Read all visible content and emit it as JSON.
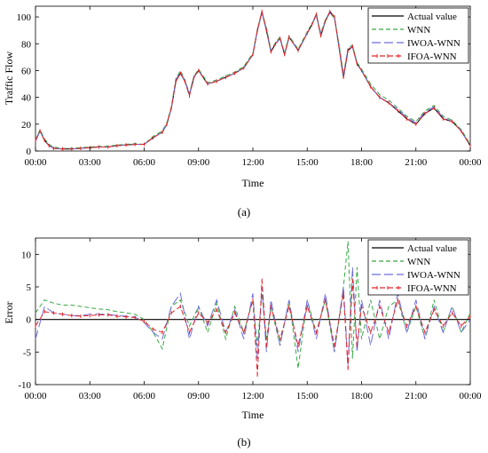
{
  "chart_data": [
    {
      "type": "line",
      "panel_label": "(a)",
      "xlabel": "Time",
      "ylabel": "Traffic Flow",
      "x_ticks": [
        "00:00",
        "03:00",
        "06:00",
        "09:00",
        "12:00",
        "15:00",
        "18:00",
        "21:00",
        "00:00"
      ],
      "xlim_hours": [
        0,
        24
      ],
      "ylim": [
        0,
        108
      ],
      "y_ticks": [
        0,
        20,
        40,
        60,
        80,
        100
      ],
      "grid": false,
      "legend_position": "top-right",
      "legend": [
        "Actual value",
        "WNN",
        "IWOA-WNN",
        "IFOA-WNN"
      ],
      "x_hours": [
        0,
        0.25,
        0.5,
        0.75,
        1,
        1.5,
        2,
        2.5,
        3,
        3.5,
        4,
        4.5,
        5,
        5.5,
        6,
        6.5,
        7,
        7.25,
        7.5,
        7.75,
        8,
        8.25,
        8.5,
        8.75,
        9,
        9.5,
        10,
        10.5,
        11,
        11.5,
        12,
        12.25,
        12.5,
        12.75,
        13,
        13.25,
        13.5,
        13.75,
        14,
        14.5,
        15,
        15.25,
        15.5,
        15.75,
        16,
        16.25,
        16.5,
        16.75,
        17,
        17.25,
        17.5,
        17.75,
        18,
        18.5,
        19,
        19.5,
        20,
        20.5,
        21,
        21.5,
        22,
        22.5,
        23,
        23.5,
        24
      ],
      "series": [
        {
          "name": "Actual value",
          "color": "#000000",
          "values": [
            8,
            15,
            8,
            4,
            2,
            1.5,
            1.5,
            2,
            2.5,
            3,
            3,
            4,
            4.5,
            5,
            5,
            10,
            14,
            20,
            32,
            52,
            58,
            52,
            42,
            55,
            60,
            50,
            52,
            55,
            58,
            62,
            72,
            90,
            104,
            90,
            74,
            80,
            84,
            72,
            85,
            75,
            88,
            94,
            102,
            86,
            97,
            104,
            100,
            78,
            55,
            75,
            78,
            65,
            60,
            48,
            40,
            36,
            30,
            24,
            20,
            28,
            32,
            24,
            22,
            15,
            4
          ]
        },
        {
          "name": "WNN",
          "color": "#39a845",
          "values": [
            8,
            16,
            9,
            5,
            3,
            2,
            2,
            2.5,
            3,
            3.5,
            3.5,
            4.5,
            5,
            5.5,
            5,
            11,
            15,
            21,
            33,
            54,
            60,
            53,
            43,
            56,
            61,
            51,
            53,
            56,
            59,
            63,
            73,
            91,
            103,
            92,
            75,
            81,
            85,
            73,
            86,
            76,
            89,
            95,
            101,
            88,
            98,
            103,
            99,
            80,
            57,
            77,
            79,
            66,
            61,
            50,
            42,
            38,
            32,
            26,
            22,
            30,
            34,
            26,
            23,
            16,
            5
          ]
        },
        {
          "name": "IWOA-WNN",
          "color": "#6e6ee0",
          "values": [
            7,
            15,
            8,
            4,
            2,
            1.5,
            1.5,
            2,
            2.5,
            3,
            3,
            4,
            4.5,
            5,
            5,
            10,
            14,
            20,
            32,
            53,
            59,
            52,
            42,
            55,
            60,
            50,
            52,
            55,
            58,
            62,
            72,
            90,
            103,
            91,
            74,
            80,
            84,
            72,
            85,
            75,
            88,
            94,
            101,
            87,
            97,
            103,
            100,
            79,
            56,
            76,
            78,
            65,
            60,
            48,
            40,
            36,
            31,
            25,
            21,
            29,
            33,
            25,
            22,
            15,
            4
          ]
        },
        {
          "name": "IFOA-WNN",
          "color": "#e0252a",
          "values": [
            8,
            15,
            8,
            4,
            2,
            1.5,
            1.5,
            2,
            2.5,
            3,
            3,
            4,
            4.5,
            5,
            5,
            10,
            14,
            20,
            32,
            52,
            58,
            52,
            41,
            55,
            60,
            50,
            52,
            55,
            58,
            62,
            72,
            90,
            104,
            90,
            74,
            80,
            84,
            72,
            85,
            75,
            88,
            94,
            102,
            86,
            97,
            104,
            100,
            78,
            55,
            75,
            78,
            65,
            60,
            48,
            40,
            36,
            30,
            24,
            20,
            28,
            32,
            24,
            22,
            15,
            4
          ]
        }
      ]
    },
    {
      "type": "line",
      "panel_label": "(b)",
      "xlabel": "Time",
      "ylabel": "Error",
      "x_ticks": [
        "00:00",
        "03:00",
        "06:00",
        "09:00",
        "12:00",
        "15:00",
        "18:00",
        "21:00",
        "00:00"
      ],
      "xlim_hours": [
        0,
        24
      ],
      "ylim": [
        -10,
        12.5
      ],
      "y_ticks": [
        -10,
        -5,
        0,
        5,
        10
      ],
      "grid": false,
      "legend_position": "top-right",
      "legend": [
        "Actual value",
        "WNN",
        "IWOA-WNN",
        "IFOA-WNN"
      ],
      "x_hours": [
        0,
        0.5,
        1,
        1.5,
        2,
        2.5,
        3,
        3.5,
        4,
        4.5,
        5,
        5.5,
        6,
        6.5,
        7,
        7.5,
        8,
        8.5,
        9,
        9.5,
        10,
        10.5,
        11,
        11.5,
        12,
        12.25,
        12.5,
        12.75,
        13,
        13.5,
        14,
        14.5,
        15,
        15.5,
        16,
        16.5,
        17,
        17.25,
        17.5,
        17.75,
        18,
        18.5,
        19,
        19.5,
        20,
        20.5,
        21,
        21.5,
        22,
        22.5,
        23,
        23.5,
        24
      ],
      "series": [
        {
          "name": "Actual value",
          "color": "#000000",
          "values": [
            0,
            0,
            0,
            0,
            0,
            0,
            0,
            0,
            0,
            0,
            0,
            0,
            0,
            0,
            0,
            0,
            0,
            0,
            0,
            0,
            0,
            0,
            0,
            0,
            0,
            0,
            0,
            0,
            0,
            0,
            0,
            0,
            0,
            0,
            0,
            0,
            0,
            0,
            0,
            0,
            0,
            0,
            0,
            0,
            0,
            0,
            0,
            0,
            0,
            0,
            0,
            0,
            0
          ]
        },
        {
          "name": "WNN",
          "color": "#39a845",
          "values": [
            1,
            3,
            2.5,
            2.2,
            2.2,
            2,
            1.8,
            1.6,
            1.5,
            1.2,
            1,
            0.8,
            0,
            -2,
            -4.5,
            2,
            3,
            -1,
            2,
            -2,
            2.5,
            -3,
            2,
            -2,
            3,
            -4,
            4,
            -3,
            2,
            -4,
            3,
            -7.5,
            3,
            -2,
            3,
            -5,
            5,
            12,
            -6,
            8,
            -3,
            3,
            -3,
            2,
            3,
            -2,
            2,
            -3,
            3,
            -2,
            2,
            -2,
            1
          ]
        },
        {
          "name": "IWOA-WNN",
          "color": "#6e6ee0",
          "values": [
            -3,
            2,
            1,
            0.8,
            0.6,
            0.6,
            0.8,
            0.8,
            0.8,
            0.6,
            0.5,
            0.4,
            -0.5,
            -2,
            -3,
            2,
            4,
            -3,
            2,
            -1,
            3,
            -2,
            1.5,
            -3,
            4,
            -6,
            5,
            -5,
            3,
            -4,
            3,
            -5,
            3,
            -3,
            4,
            -5,
            5,
            -7,
            8,
            -5,
            3,
            -4,
            3,
            -3,
            4,
            -2,
            3,
            -3,
            2,
            -2,
            2,
            -2,
            0
          ]
        },
        {
          "name": "IFOA-WNN",
          "color": "#e0252a",
          "values": [
            -1,
            1.2,
            1,
            0.8,
            0.6,
            0.5,
            0.6,
            0.7,
            0.7,
            0.5,
            0.4,
            0.3,
            -0.3,
            -1.5,
            -2,
            1,
            2,
            -2,
            1,
            -0.5,
            1.5,
            -2,
            1,
            -2,
            3,
            -8.5,
            6,
            -4,
            2,
            -3,
            2,
            -4,
            2,
            -2,
            3,
            -4,
            4,
            -7.5,
            6,
            -4,
            2,
            -2,
            2,
            -2,
            3,
            -1,
            2,
            -2,
            1.5,
            -1,
            1,
            -1,
            0.5
          ]
        }
      ]
    }
  ]
}
